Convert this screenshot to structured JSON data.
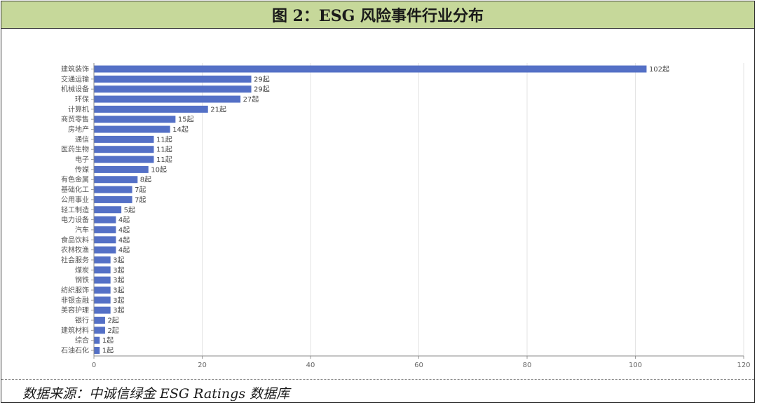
{
  "title": "图 2：ESG 风险事件行业分布",
  "source": "数据来源：中诚信绿金 ESG Ratings 数据库",
  "colors": {
    "bar": "#5470c6",
    "header_bg": "#c6d89a"
  },
  "chart_data": {
    "type": "bar",
    "orientation": "horizontal",
    "categories": [
      "建筑装饰",
      "交通运输",
      "机械设备",
      "环保",
      "计算机",
      "商贸零售",
      "房地产",
      "通信",
      "医药生物",
      "电子",
      "传媒",
      "有色金属",
      "基础化工",
      "公用事业",
      "轻工制造",
      "电力设备",
      "汽车",
      "食品饮料",
      "农林牧渔",
      "社会服务",
      "煤炭",
      "钢铁",
      "纺织服饰",
      "非银金融",
      "美容护理",
      "银行",
      "建筑材料",
      "综合",
      "石油石化"
    ],
    "values": [
      102,
      29,
      29,
      27,
      21,
      15,
      14,
      11,
      11,
      11,
      10,
      8,
      7,
      7,
      5,
      4,
      4,
      4,
      4,
      3,
      3,
      3,
      3,
      3,
      3,
      2,
      2,
      1,
      1
    ],
    "value_labels": [
      "102起",
      "29起",
      "29起",
      "27起",
      "21起",
      "15起",
      "14起",
      "11起",
      "11起",
      "11起",
      "10起",
      "8起",
      "7起",
      "7起",
      "5起",
      "4起",
      "4起",
      "4起",
      "4起",
      "3起",
      "3起",
      "3起",
      "3起",
      "3起",
      "3起",
      "2起",
      "2起",
      "1起",
      "1起"
    ],
    "xlim": [
      0,
      120
    ],
    "xticks": [
      "0",
      "20",
      "40",
      "60",
      "80",
      "100",
      "120"
    ],
    "grid": true
  }
}
